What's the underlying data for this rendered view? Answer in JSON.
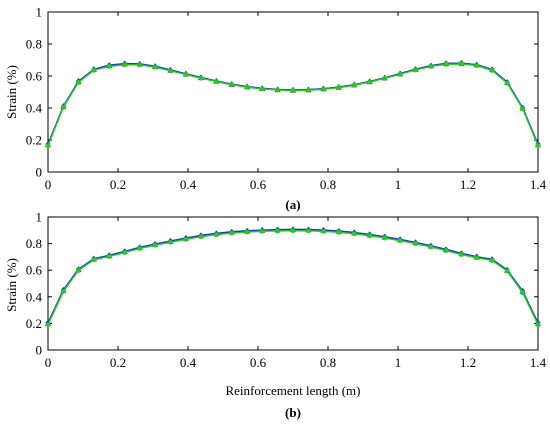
{
  "chart_data": [
    {
      "type": "line",
      "panel_label": "(a)",
      "xlabel": "",
      "ylabel": "Strain (%)",
      "xlim": [
        0,
        1.4
      ],
      "ylim": [
        0,
        1
      ],
      "xticks": [
        "0",
        "0.2",
        "0.4",
        "0.6",
        "0.8",
        "1",
        "1.2",
        "1.4"
      ],
      "yticks": [
        "0",
        "0.2",
        "0.4",
        "0.6",
        "0.8",
        "1"
      ],
      "grid": false,
      "legend": "none",
      "series": [
        {
          "color": "#8b0000",
          "marker": "triangle",
          "x": [
            0.0,
            0.044,
            0.087,
            0.131,
            0.175,
            0.219,
            0.262,
            0.306,
            0.35,
            0.394,
            0.437,
            0.481,
            0.525,
            0.569,
            0.612,
            0.656,
            0.7,
            0.744,
            0.787,
            0.831,
            0.875,
            0.919,
            0.962,
            1.006,
            1.05,
            1.094,
            1.137,
            1.181,
            1.225,
            1.269,
            1.312,
            1.356,
            1.4
          ],
          "y": [
            0.17,
            0.41,
            0.565,
            0.64,
            0.665,
            0.675,
            0.675,
            0.66,
            0.637,
            0.613,
            0.59,
            0.568,
            0.548,
            0.533,
            0.522,
            0.515,
            0.512,
            0.514,
            0.52,
            0.53,
            0.545,
            0.565,
            0.588,
            0.614,
            0.642,
            0.664,
            0.678,
            0.68,
            0.67,
            0.64,
            0.56,
            0.4,
            0.17
          ]
        },
        {
          "color": "#1f3fbf",
          "marker": "diamond",
          "x": [
            0.0,
            0.044,
            0.087,
            0.131,
            0.175,
            0.219,
            0.262,
            0.306,
            0.35,
            0.394,
            0.437,
            0.481,
            0.525,
            0.569,
            0.612,
            0.656,
            0.7,
            0.744,
            0.787,
            0.831,
            0.875,
            0.919,
            0.962,
            1.006,
            1.05,
            1.094,
            1.137,
            1.181,
            1.225,
            1.269,
            1.312,
            1.356,
            1.4
          ],
          "y": [
            0.175,
            0.412,
            0.568,
            0.642,
            0.668,
            0.678,
            0.676,
            0.661,
            0.638,
            0.614,
            0.591,
            0.569,
            0.549,
            0.534,
            0.523,
            0.516,
            0.513,
            0.515,
            0.521,
            0.531,
            0.546,
            0.566,
            0.589,
            0.615,
            0.643,
            0.665,
            0.679,
            0.681,
            0.671,
            0.641,
            0.562,
            0.402,
            0.175
          ]
        },
        {
          "color": "#22cc22",
          "marker": "circle",
          "x": [
            0.0,
            0.044,
            0.087,
            0.131,
            0.175,
            0.219,
            0.262,
            0.306,
            0.35,
            0.394,
            0.437,
            0.481,
            0.525,
            0.569,
            0.612,
            0.656,
            0.7,
            0.744,
            0.787,
            0.831,
            0.875,
            0.919,
            0.962,
            1.006,
            1.05,
            1.094,
            1.137,
            1.181,
            1.225,
            1.269,
            1.312,
            1.356,
            1.4
          ],
          "y": [
            0.165,
            0.405,
            0.56,
            0.636,
            0.66,
            0.67,
            0.67,
            0.655,
            0.632,
            0.609,
            0.586,
            0.565,
            0.545,
            0.53,
            0.519,
            0.512,
            0.509,
            0.511,
            0.517,
            0.527,
            0.542,
            0.562,
            0.585,
            0.611,
            0.638,
            0.66,
            0.673,
            0.675,
            0.665,
            0.635,
            0.555,
            0.395,
            0.165
          ]
        }
      ]
    },
    {
      "type": "line",
      "panel_label": "(b)",
      "xlabel": "Reinforcement length (m)",
      "ylabel": "Strain (%)",
      "xlim": [
        0,
        1.4
      ],
      "ylim": [
        0,
        1
      ],
      "xticks": [
        "0",
        "0.2",
        "0.4",
        "0.6",
        "0.8",
        "1",
        "1.2",
        "1.4"
      ],
      "yticks": [
        "0",
        "0.2",
        "0.4",
        "0.6",
        "0.8",
        "1"
      ],
      "grid": false,
      "legend": "none",
      "series": [
        {
          "color": "#8b0000",
          "marker": "triangle",
          "x": [
            0.0,
            0.044,
            0.087,
            0.131,
            0.175,
            0.219,
            0.262,
            0.306,
            0.35,
            0.394,
            0.437,
            0.481,
            0.525,
            0.569,
            0.612,
            0.656,
            0.7,
            0.744,
            0.787,
            0.831,
            0.875,
            0.919,
            0.962,
            1.006,
            1.05,
            1.094,
            1.137,
            1.181,
            1.225,
            1.269,
            1.312,
            1.356,
            1.4
          ],
          "y": [
            0.2,
            0.45,
            0.605,
            0.685,
            0.71,
            0.74,
            0.77,
            0.795,
            0.818,
            0.84,
            0.86,
            0.875,
            0.887,
            0.895,
            0.9,
            0.903,
            0.905,
            0.904,
            0.9,
            0.893,
            0.882,
            0.867,
            0.85,
            0.83,
            0.807,
            0.782,
            0.755,
            0.725,
            0.7,
            0.68,
            0.6,
            0.44,
            0.2
          ]
        },
        {
          "color": "#1f3fbf",
          "marker": "diamond",
          "x": [
            0.0,
            0.044,
            0.087,
            0.131,
            0.175,
            0.219,
            0.262,
            0.306,
            0.35,
            0.394,
            0.437,
            0.481,
            0.525,
            0.569,
            0.612,
            0.656,
            0.7,
            0.744,
            0.787,
            0.831,
            0.875,
            0.919,
            0.962,
            1.006,
            1.05,
            1.094,
            1.137,
            1.181,
            1.225,
            1.269,
            1.312,
            1.356,
            1.4
          ],
          "y": [
            0.205,
            0.452,
            0.607,
            0.687,
            0.712,
            0.742,
            0.772,
            0.797,
            0.82,
            0.842,
            0.862,
            0.877,
            0.889,
            0.897,
            0.902,
            0.905,
            0.907,
            0.906,
            0.902,
            0.895,
            0.884,
            0.869,
            0.852,
            0.832,
            0.809,
            0.784,
            0.757,
            0.727,
            0.702,
            0.682,
            0.602,
            0.445,
            0.205
          ]
        },
        {
          "color": "#22cc22",
          "marker": "circle",
          "x": [
            0.0,
            0.044,
            0.087,
            0.131,
            0.175,
            0.219,
            0.262,
            0.306,
            0.35,
            0.394,
            0.437,
            0.481,
            0.525,
            0.569,
            0.612,
            0.656,
            0.7,
            0.744,
            0.787,
            0.831,
            0.875,
            0.919,
            0.962,
            1.006,
            1.05,
            1.094,
            1.137,
            1.181,
            1.225,
            1.269,
            1.312,
            1.356,
            1.4
          ],
          "y": [
            0.19,
            0.44,
            0.598,
            0.678,
            0.703,
            0.733,
            0.763,
            0.788,
            0.81,
            0.832,
            0.852,
            0.867,
            0.879,
            0.887,
            0.892,
            0.895,
            0.897,
            0.896,
            0.892,
            0.885,
            0.874,
            0.859,
            0.842,
            0.822,
            0.8,
            0.775,
            0.748,
            0.718,
            0.693,
            0.673,
            0.593,
            0.432,
            0.19
          ]
        }
      ]
    }
  ]
}
